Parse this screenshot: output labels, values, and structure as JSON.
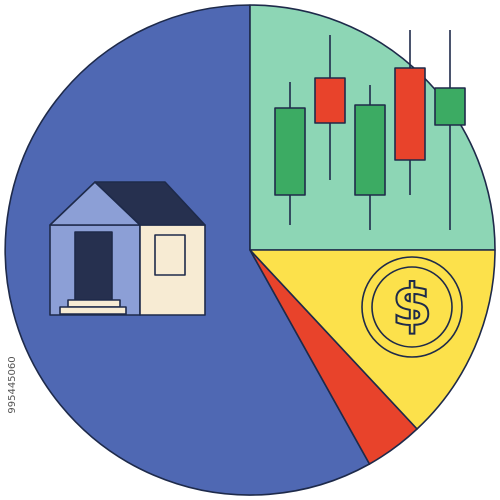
{
  "coin_symbol": "$",
  "image_id": "995445060"
}
